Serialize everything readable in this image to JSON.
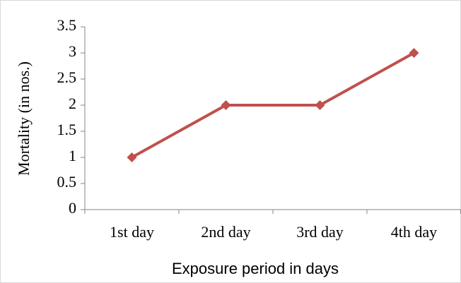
{
  "chart_data": {
    "type": "line",
    "categories": [
      "1st day",
      "2nd day",
      "3rd day",
      "4th day"
    ],
    "series": [
      {
        "name": "Mortality",
        "color": "#c0504d",
        "values": [
          1,
          2,
          2,
          3
        ]
      }
    ],
    "ylim": [
      0,
      3.5
    ],
    "yticks": [
      0,
      0.5,
      1,
      1.5,
      2,
      2.5,
      3,
      3.5
    ],
    "ylabel": "Mortality (in nos.)",
    "xlabel": "Exposure period in days",
    "grid": false,
    "legend": false
  }
}
